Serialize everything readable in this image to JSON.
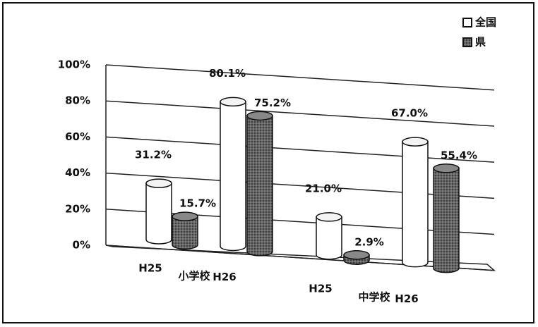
{
  "chart_data": {
    "type": "bar",
    "categories": [
      "H25",
      "H26",
      "H25",
      "H26"
    ],
    "group_labels": [
      "小学校",
      "中学校"
    ],
    "series": [
      {
        "name": "全国",
        "color": "#ffffff",
        "values": [
          31.2,
          80.1,
          21.0,
          67.0
        ],
        "value_labels": [
          "31.2%",
          "80.1%",
          "21.0%",
          "67.0%"
        ]
      },
      {
        "name": "県",
        "color": "#555555",
        "values": [
          15.7,
          75.2,
          2.9,
          55.4
        ],
        "value_labels": [
          "15.7%",
          "75.2%",
          "2.9%",
          "55.4%"
        ]
      }
    ],
    "ylim": [
      0,
      100
    ],
    "yticks": [
      {
        "value": 0,
        "label": "0%"
      },
      {
        "value": 20,
        "label": "20%"
      },
      {
        "value": 40,
        "label": "40%"
      },
      {
        "value": 60,
        "label": "60%"
      },
      {
        "value": 80,
        "label": "80%"
      },
      {
        "value": 100,
        "label": "100%"
      }
    ],
    "grid": true,
    "legend": "top-right"
  }
}
